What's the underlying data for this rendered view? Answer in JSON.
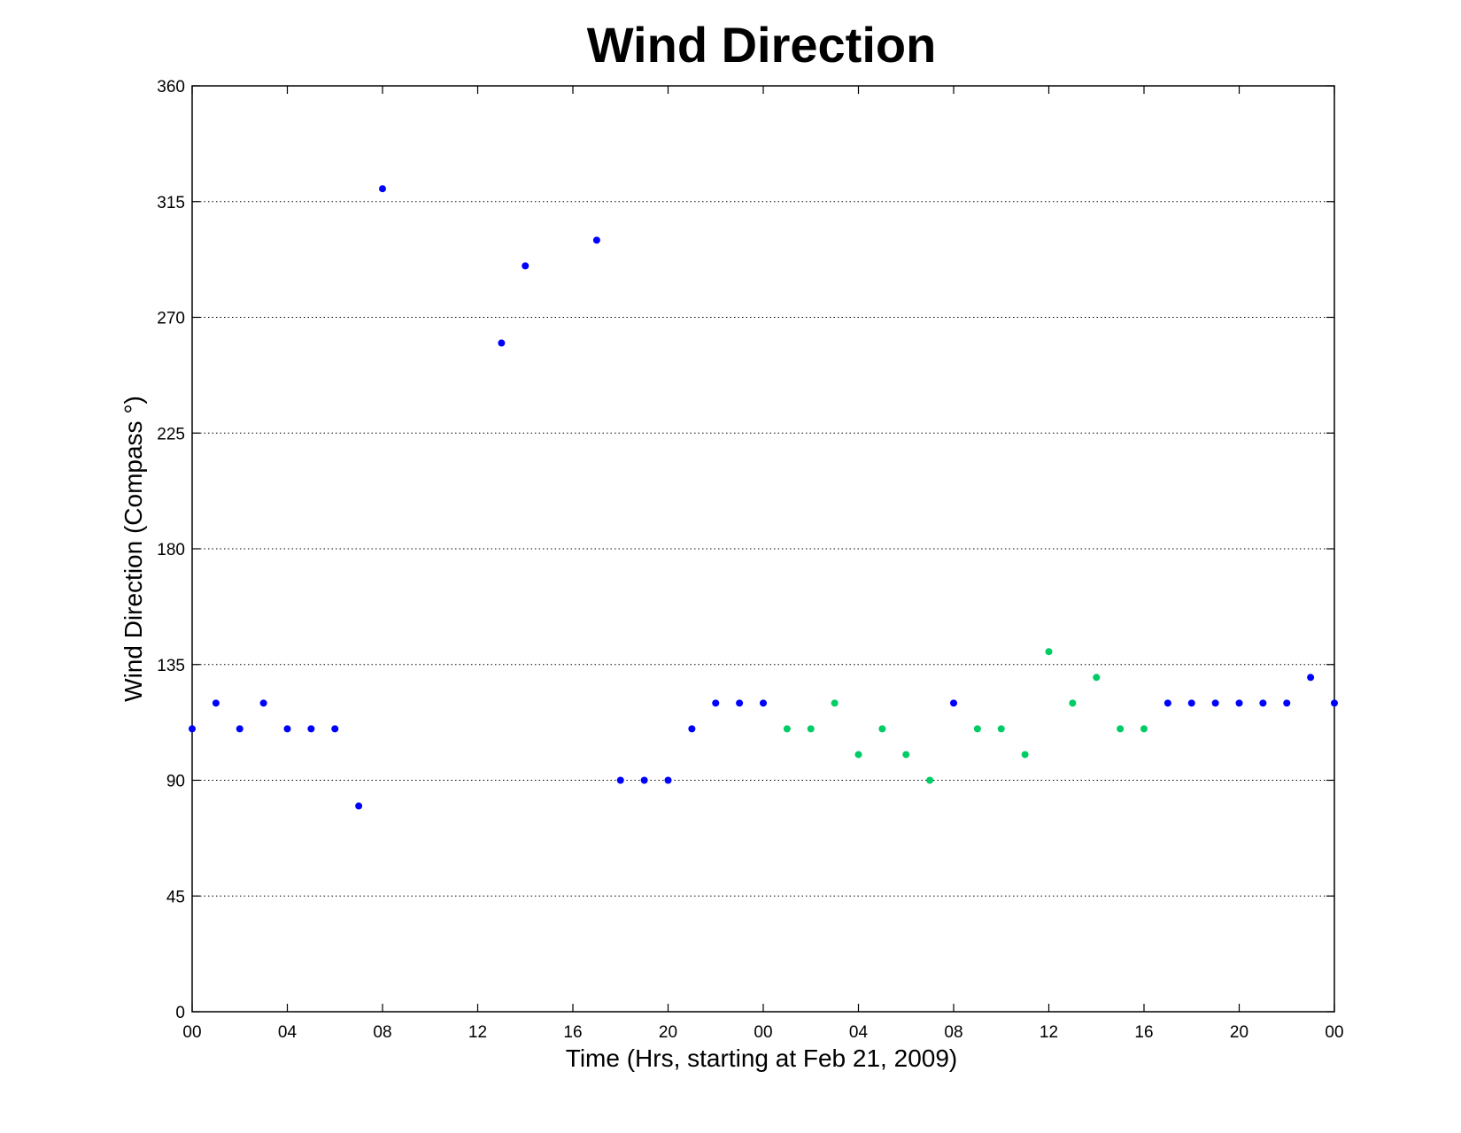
{
  "chart_data": {
    "type": "scatter",
    "title": "Wind Direction",
    "xlabel": "Time (Hrs, starting at Feb 21, 2009)",
    "ylabel": "Wind Direction (Compass  °)",
    "ylim": [
      0,
      360
    ],
    "xlim": [
      0,
      48
    ],
    "x_unit": "hours",
    "y_ticks": [
      0,
      45,
      90,
      135,
      180,
      225,
      270,
      315,
      360
    ],
    "y_tick_labels": [
      "0",
      "45",
      "90",
      "135",
      "180",
      "225",
      "270",
      "315",
      "360"
    ],
    "x_ticks": [
      0,
      4,
      8,
      12,
      16,
      20,
      24,
      28,
      32,
      36,
      40,
      44,
      48
    ],
    "x_tick_labels": [
      "00",
      "04",
      "08",
      "12",
      "16",
      "20",
      "00",
      "04",
      "08",
      "12",
      "16",
      "20",
      "00"
    ],
    "grid": "y-dotted",
    "series": [
      {
        "color": "#0000ff",
        "x": [
          0,
          1,
          2,
          3,
          4,
          5,
          6,
          7,
          8,
          13,
          14,
          17,
          18,
          19,
          20,
          21,
          22,
          23,
          24,
          32,
          41,
          42,
          43,
          44,
          45,
          46,
          47,
          48
        ],
        "y": [
          110,
          120,
          110,
          120,
          110,
          110,
          110,
          80,
          320,
          260,
          290,
          300,
          90,
          90,
          90,
          110,
          120,
          120,
          120,
          120,
          120,
          120,
          120,
          120,
          120,
          120,
          130,
          120
        ]
      },
      {
        "color": "#00cc66",
        "x": [
          25,
          26,
          27,
          28,
          29,
          30,
          31,
          33,
          34,
          35,
          36,
          37,
          38,
          39,
          40
        ],
        "y": [
          110,
          110,
          120,
          100,
          110,
          100,
          90,
          110,
          110,
          100,
          140,
          120,
          130,
          110,
          110
        ]
      }
    ]
  }
}
